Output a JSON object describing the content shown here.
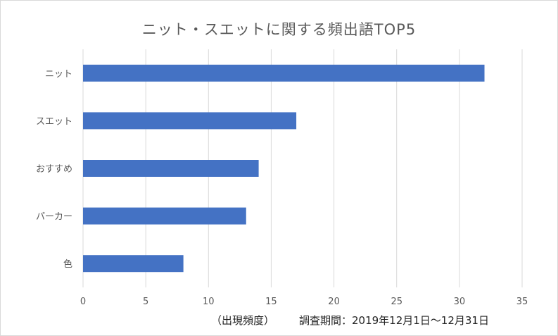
{
  "chart_data": {
    "type": "bar",
    "orientation": "horizontal",
    "title": "ニット・スエットに関する頻出語TOP5",
    "categories": [
      "ニット",
      "スエット",
      "おすすめ",
      "パーカー",
      "色"
    ],
    "values": [
      32,
      17,
      14,
      13,
      8
    ],
    "xlabel": "（出現頻度）",
    "ylabel": "",
    "xlim": [
      0,
      35
    ],
    "xticks": [
      "0",
      "5",
      "10",
      "15",
      "20",
      "25",
      "30",
      "35"
    ],
    "grid": true,
    "bar_color": "#4472c4",
    "annotation": "調査期間：2019年12月1日～12月31日"
  }
}
